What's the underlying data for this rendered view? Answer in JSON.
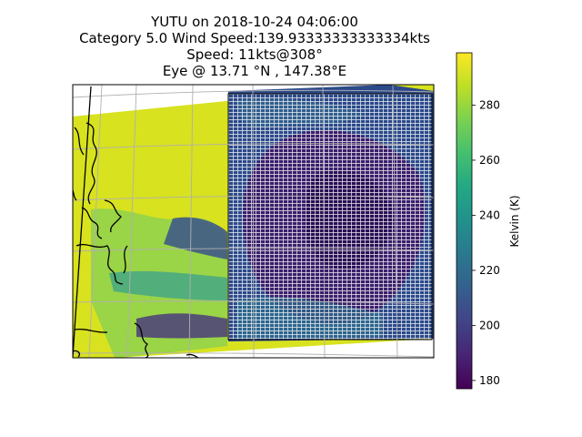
{
  "chart_data": {
    "type": "heatmap",
    "title_lines": [
      "YUTU on 2018-10-24 04:06:00",
      "Category 5.0 Wind Speed:139.93333333333334kts",
      "Speed: 11kts@308°",
      "Eye @ 13.71 °N , 147.38°E"
    ],
    "colorbar": {
      "label": "Kelvin (K)",
      "colormap": "viridis",
      "range": [
        177,
        299
      ],
      "ticks": [
        180,
        200,
        220,
        240,
        260,
        280
      ]
    },
    "grid": true
  },
  "colors": {
    "viridis_low": "#440154",
    "viridis_mid": "#21918c",
    "viridis_high": "#fde725"
  }
}
